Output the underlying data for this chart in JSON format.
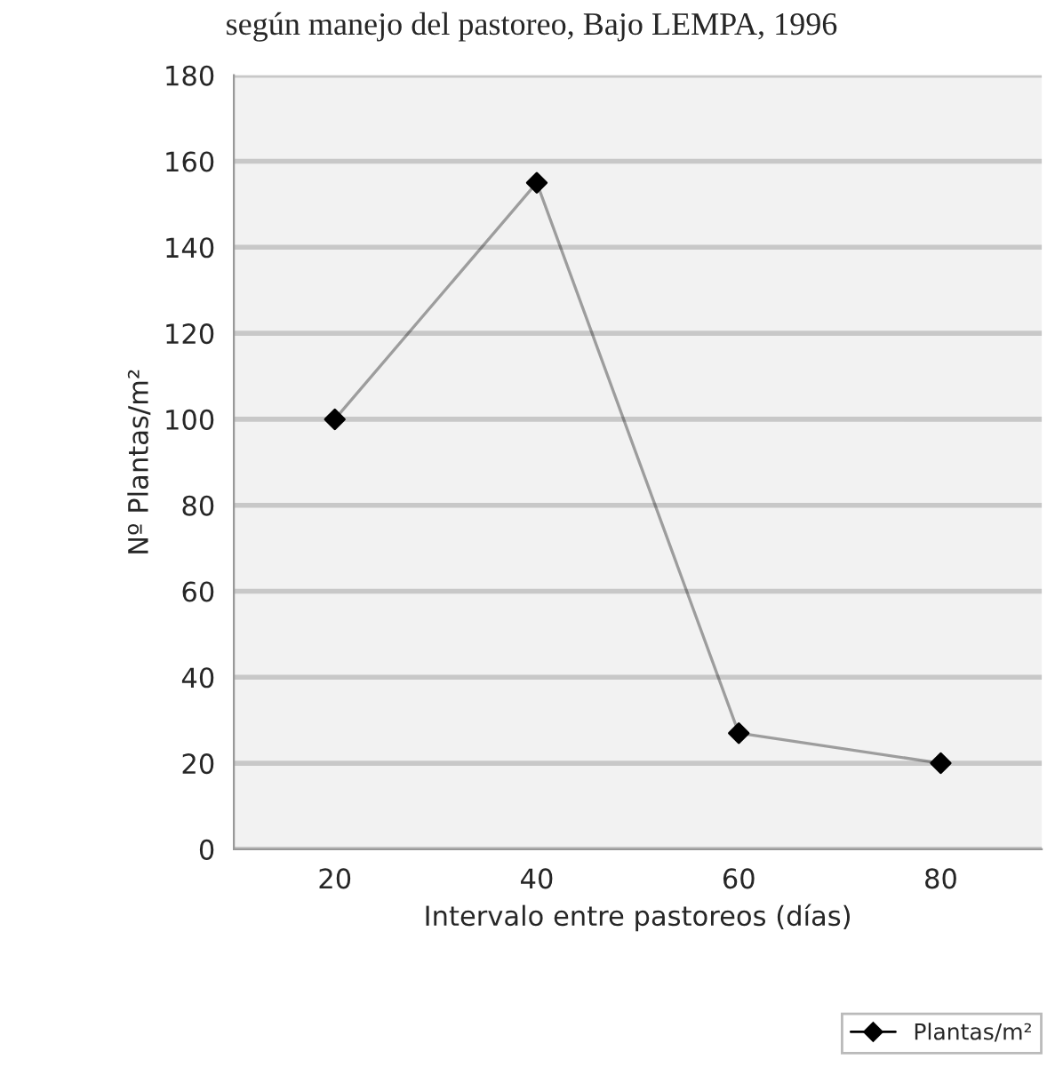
{
  "chart_data": {
    "type": "line",
    "title": "según manejo del pastoreo, Bajo LEMPA, 1996",
    "xlabel": "Intervalo entre pastoreos (días)",
    "ylabel": "Nº Plantas/m²",
    "categories": [
      "20",
      "40",
      "60",
      "80"
    ],
    "series": [
      {
        "name": "Plantas/m²",
        "color": "#000000",
        "values": [
          100,
          155,
          27,
          20
        ]
      }
    ],
    "ylim": [
      0,
      180
    ],
    "yticks": [
      0,
      20,
      40,
      60,
      80,
      100,
      120,
      140,
      160,
      180
    ],
    "grid": "y",
    "legend": "bottom right",
    "marker": "diamond",
    "line_style": "solid"
  }
}
